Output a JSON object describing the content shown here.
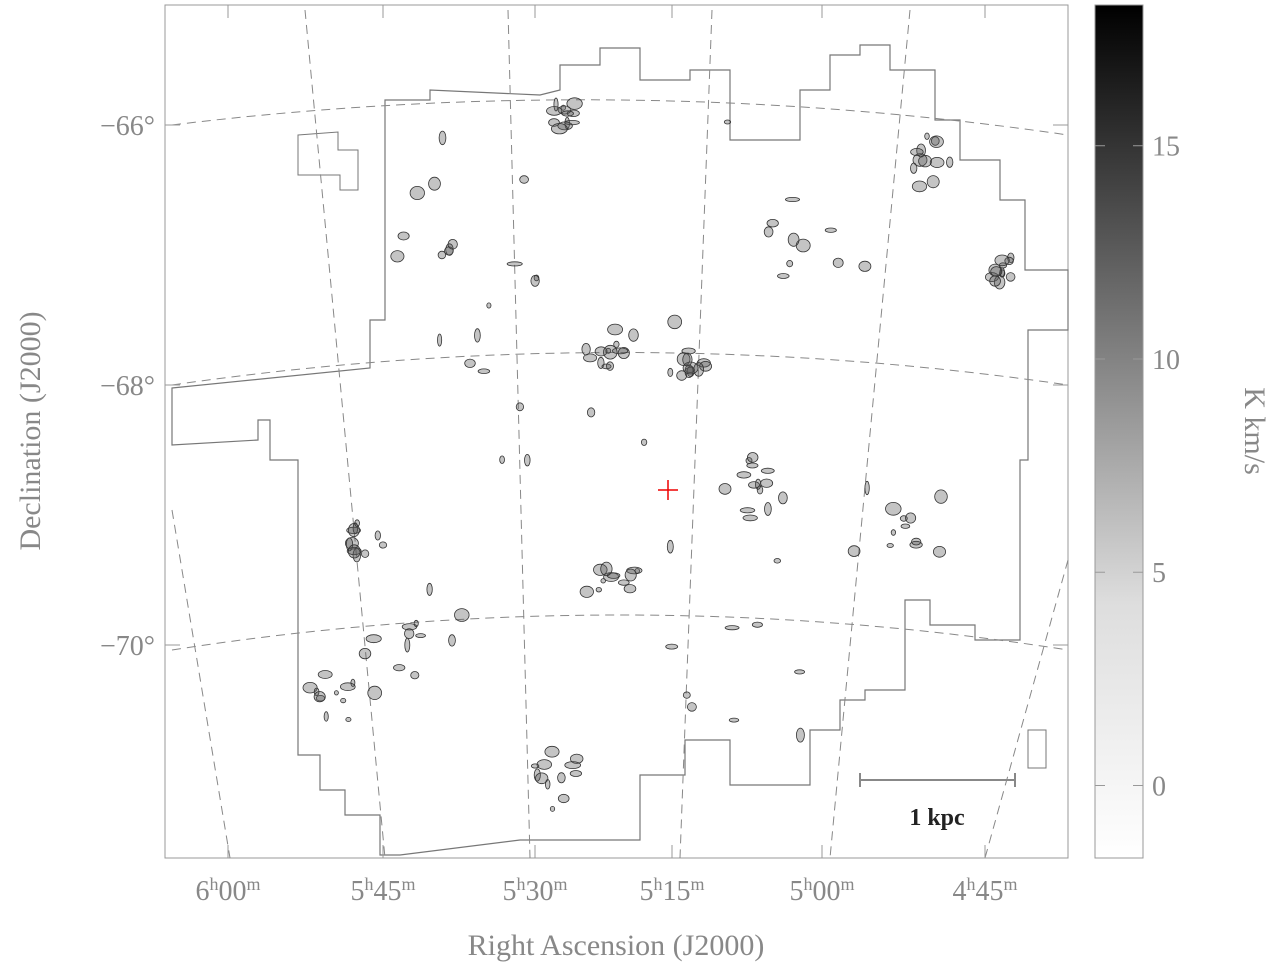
{
  "map": {
    "x_label": "Right Ascension (J2000)",
    "y_label": "Declination (J2000)",
    "ra_ticks": [
      [
        "6",
        "h",
        "00",
        "m"
      ],
      [
        "5",
        "h",
        "45",
        "m"
      ],
      [
        "5",
        "h",
        "30",
        "m"
      ],
      [
        "5",
        "h",
        "15",
        "m"
      ],
      [
        "5",
        "h",
        "00",
        "m"
      ],
      [
        "4",
        "h",
        "45",
        "m"
      ]
    ],
    "dec_ticks": [
      "−66°",
      "−68°",
      "−70°"
    ],
    "scale_bar": "1 kpc"
  },
  "colorbar": {
    "label": "K km/s",
    "lim": [
      -1.7,
      18.3
    ],
    "ticks": [
      0,
      5,
      10,
      15
    ]
  }
}
